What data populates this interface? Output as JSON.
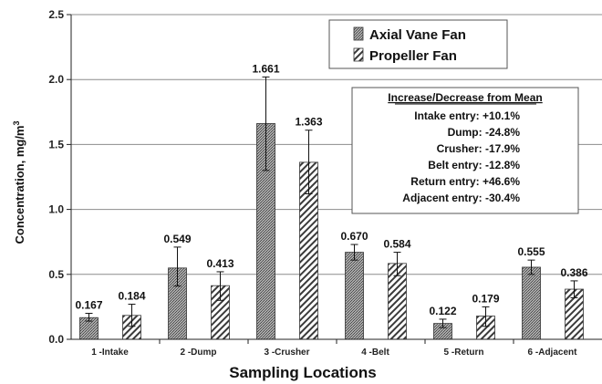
{
  "chart_data": {
    "type": "bar",
    "xlabel": "Sampling Locations",
    "ylabel": "Concentration, mg/m",
    "ylabel_sup": "3",
    "ylim": [
      0,
      2.5
    ],
    "yticks": [
      "0.0",
      "0.5",
      "1.0",
      "1.5",
      "2.0",
      "2.5"
    ],
    "grid": true,
    "legend_position": "top-right",
    "categories": [
      "1 -Intake",
      "2 -Dump",
      "3 -Crusher",
      "4 -Belt",
      "5 -Return",
      "6 -Adjacent"
    ],
    "series": [
      {
        "name": "Axial Vane Fan",
        "values": [
          0.167,
          0.549,
          1.661,
          0.67,
          0.122,
          0.555
        ],
        "labels": [
          "0.167",
          "0.549",
          "1.661",
          "0.670",
          "0.122",
          "0.555"
        ],
        "err_low": [
          0.14,
          0.41,
          1.3,
          0.61,
          0.09,
          0.5
        ],
        "err_high": [
          0.2,
          0.71,
          2.02,
          0.73,
          0.155,
          0.61
        ]
      },
      {
        "name": "Propeller Fan",
        "values": [
          0.184,
          0.413,
          1.363,
          0.584,
          0.179,
          0.386
        ],
        "labels": [
          "0.184",
          "0.413",
          "1.363",
          "0.584",
          "0.179",
          "0.386"
        ],
        "err_low": [
          0.1,
          0.3,
          1.12,
          0.49,
          0.1,
          0.32
        ],
        "err_high": [
          0.27,
          0.52,
          1.61,
          0.67,
          0.25,
          0.45
        ]
      }
    ],
    "annotation": {
      "title": "Increase/Decrease from Mean",
      "lines": [
        "Intake entry:  +10.1%",
        "Dump:  -24.8%",
        "Crusher:  -17.9%",
        "Belt entry:  -12.8%",
        "Return entry:  +46.6%",
        "Adjacent entry:  -30.4%"
      ]
    }
  }
}
